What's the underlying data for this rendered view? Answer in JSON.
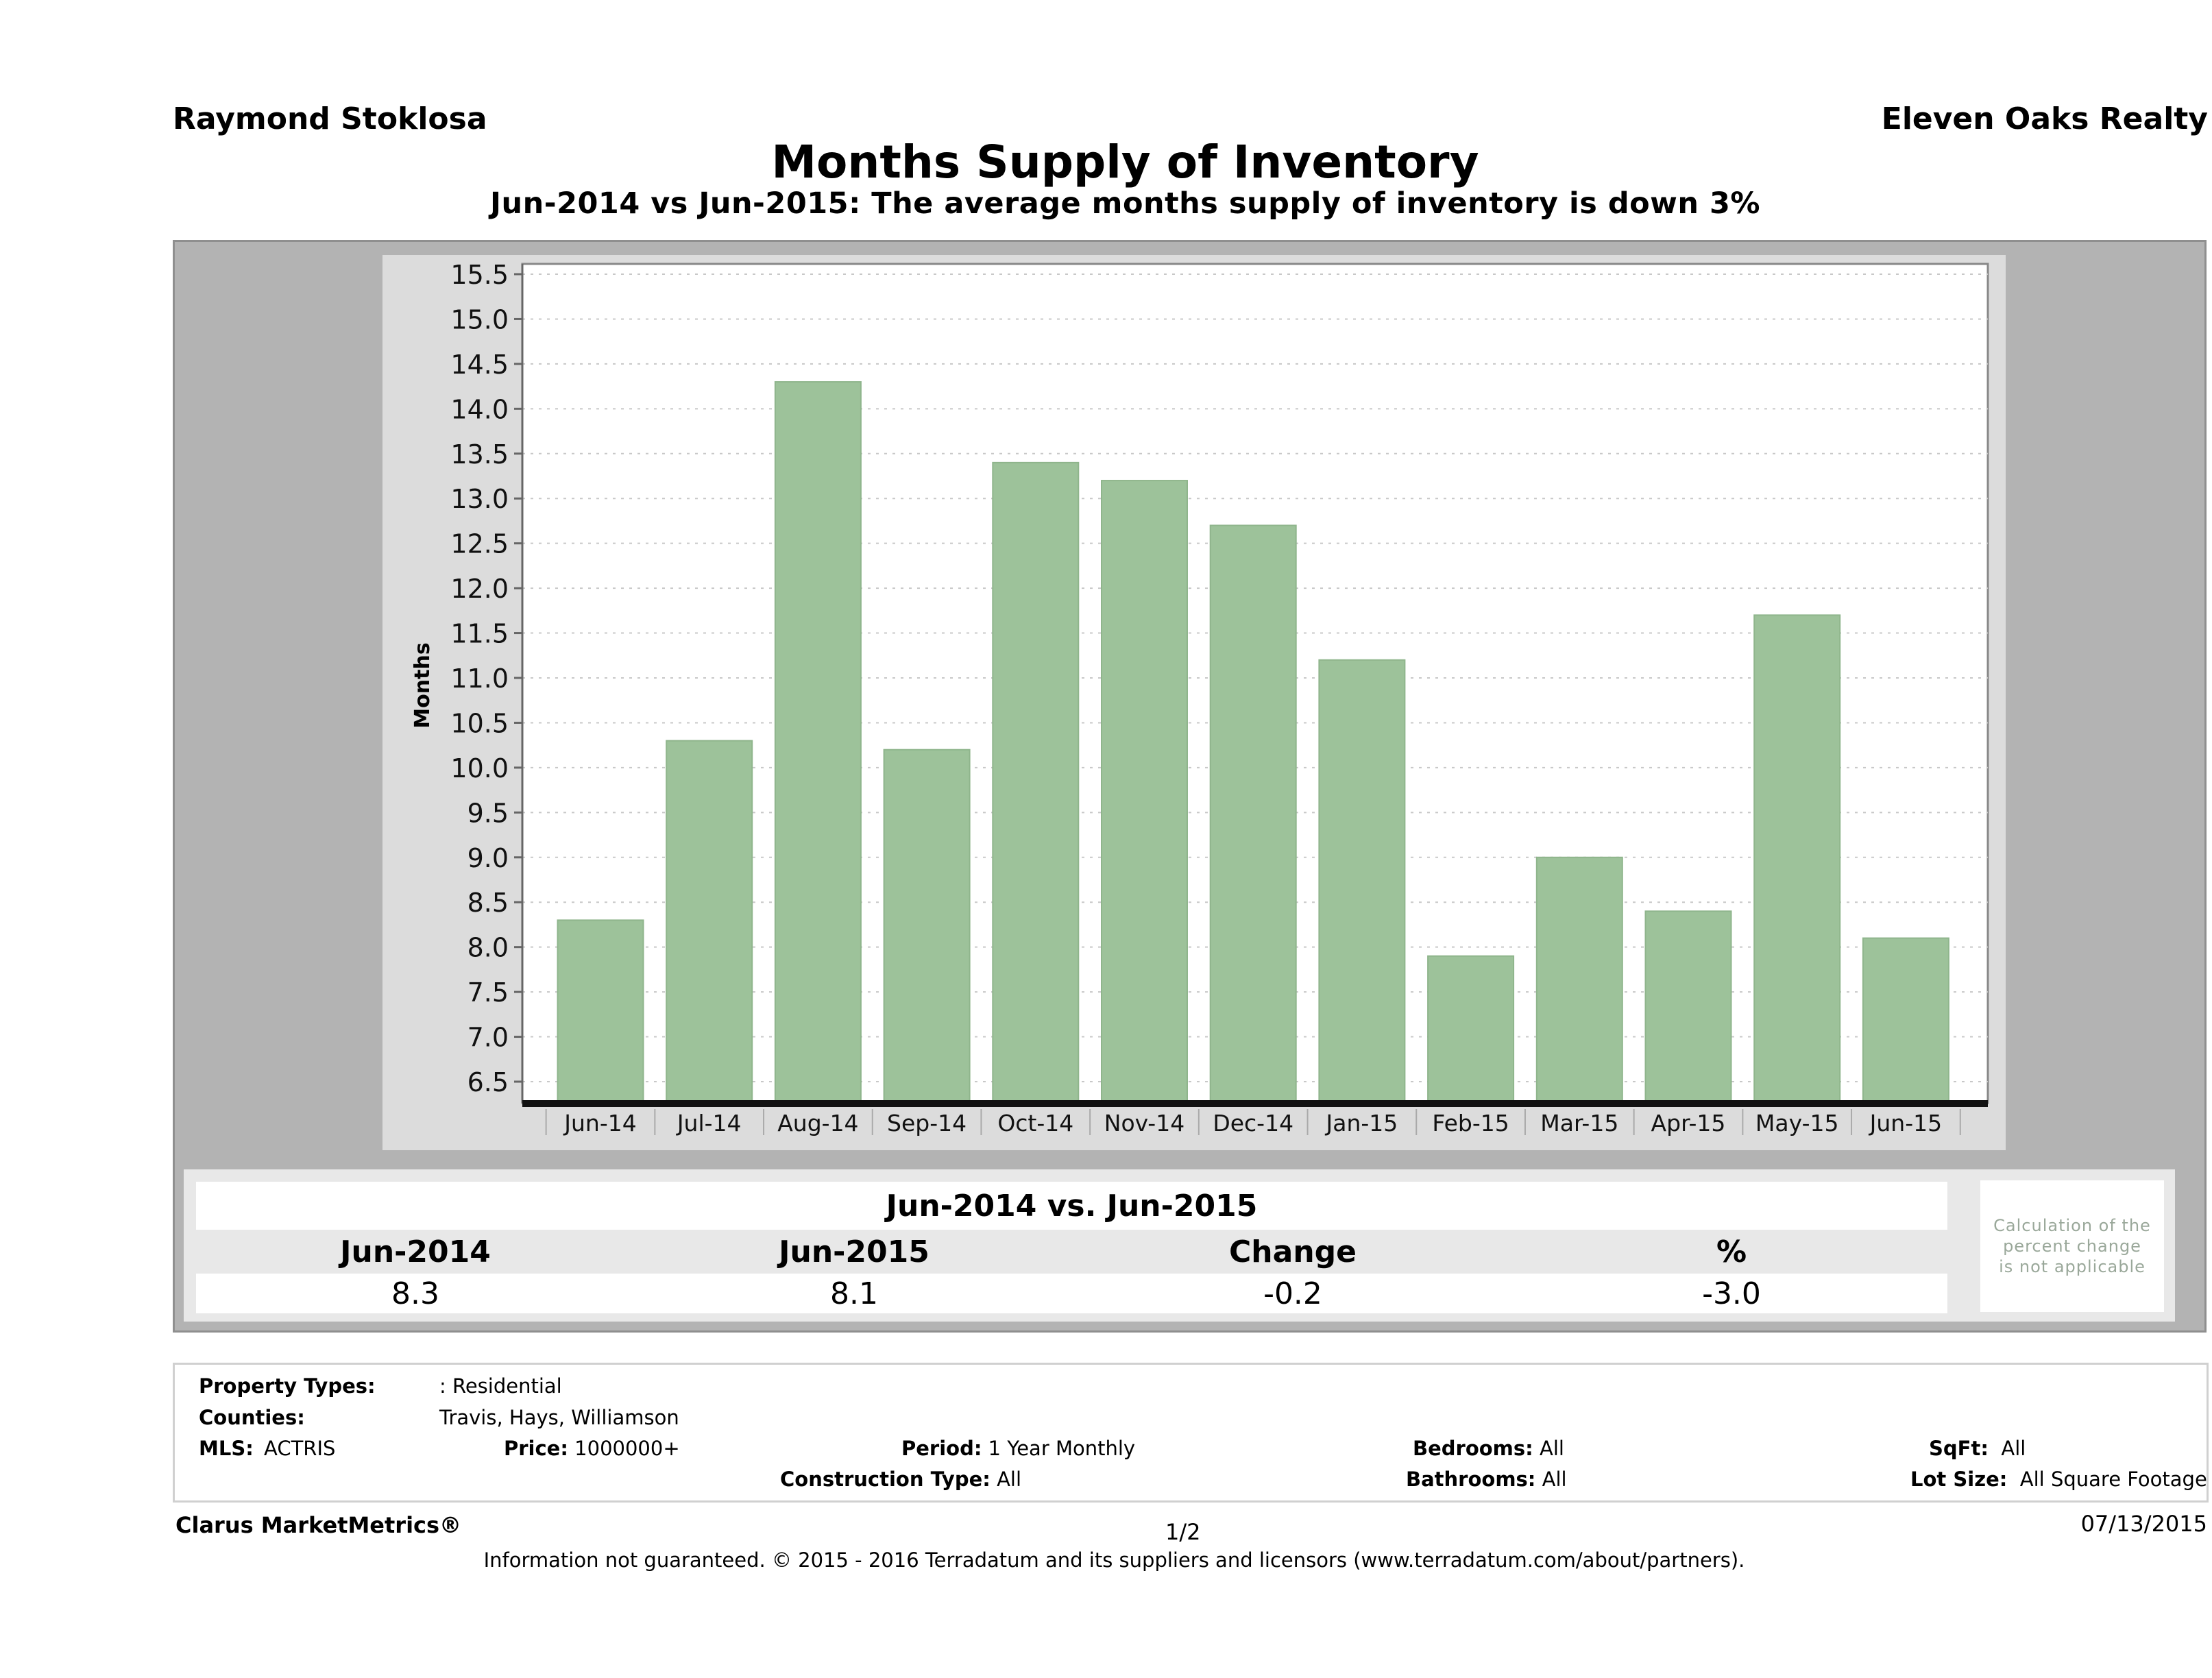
{
  "header": {
    "agent_name": "Raymond Stoklosa",
    "company_name": "Eleven Oaks Realty",
    "title": "Months Supply of Inventory",
    "subtitle": "Jun-2014 vs Jun-2015: The average months supply of inventory is down 3%"
  },
  "chart_data": {
    "type": "bar",
    "title": "Months Supply of Inventory",
    "xlabel": "",
    "ylabel": "Months",
    "categories": [
      "Jun-14",
      "Jul-14",
      "Aug-14",
      "Sep-14",
      "Oct-14",
      "Nov-14",
      "Dec-14",
      "Jan-15",
      "Feb-15",
      "Mar-15",
      "Apr-15",
      "May-15",
      "Jun-15"
    ],
    "values": [
      8.3,
      10.3,
      14.3,
      10.2,
      13.4,
      13.2,
      12.7,
      11.2,
      7.9,
      9.0,
      8.4,
      11.7,
      8.1
    ],
    "ylim": [
      6.25,
      15.6
    ],
    "yticks": [
      "6.5",
      "7.0",
      "7.5",
      "8.0",
      "8.5",
      "9.0",
      "9.5",
      "10.0",
      "10.5",
      "11.0",
      "11.5",
      "12.0",
      "12.5",
      "13.0",
      "13.5",
      "14.0",
      "14.5",
      "15.0",
      "15.5"
    ],
    "grid": true,
    "bar_color": "#9dc29a"
  },
  "summary": {
    "heading": "Jun-2014 vs. Jun-2015",
    "columns": [
      "Jun-2014",
      "Jun-2015",
      "Change",
      "%"
    ],
    "values": [
      "8.3",
      "8.1",
      "-0.2",
      "-3.0"
    ],
    "note": "Calculation of the percent change is not applicable"
  },
  "criteria": {
    "property_types_label": "Property Types:",
    "property_types_value": ": Residential",
    "counties_label": "Counties:",
    "counties_value": "Travis, Hays, Williamson",
    "mls_label": "MLS:",
    "mls_value": "ACTRIS",
    "price_label": "Price:",
    "price_value": "1000000+",
    "period_label": "Period:",
    "period_value": "1 Year Monthly",
    "construction_label": "Construction Type:",
    "construction_value": "All",
    "bedrooms_label": "Bedrooms:",
    "bedrooms_value": "All",
    "bathrooms_label": "Bathrooms:",
    "bathrooms_value": "All",
    "sqft_label": "SqFt:",
    "sqft_value": "All",
    "lotsize_label": "Lot Size:",
    "lotsize_value": "All Square Footage"
  },
  "footer": {
    "brand": "Clarus MarketMetrics®",
    "page": "1/2",
    "date": "07/13/2015",
    "disclaimer": "Information not guaranteed. © 2015 - 2016 Terradatum and its suppliers and licensors (www.terradatum.com/about/partners)."
  }
}
